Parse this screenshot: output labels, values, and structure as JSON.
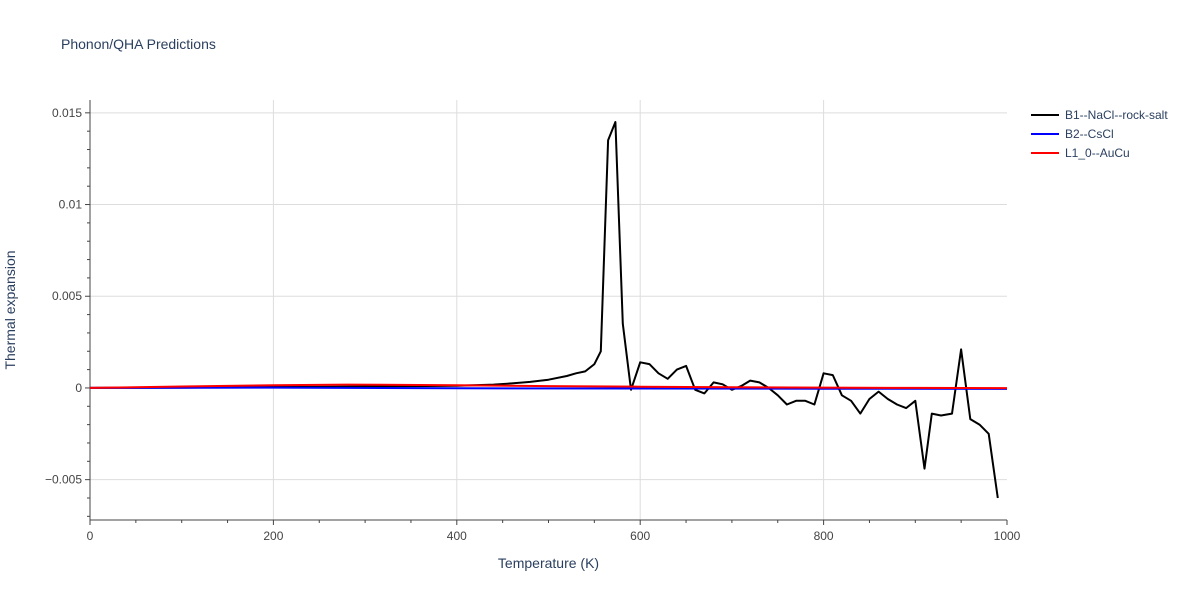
{
  "chart_data": {
    "type": "line",
    "title": "Phonon/QHA Predictions",
    "xlabel": "Temperature (K)",
    "ylabel": "Thermal expansion",
    "xlim": [
      0,
      1000
    ],
    "ylim": [
      -0.0072,
      0.0157
    ],
    "xticks": [
      0,
      200,
      400,
      600,
      800,
      1000
    ],
    "xtick_labels": [
      "0",
      "200",
      "400",
      "600",
      "800",
      "1000"
    ],
    "yticks": [
      -0.005,
      0,
      0.005,
      0.01,
      0.015
    ],
    "ytick_labels": [
      "−0.005",
      "0",
      "0.005",
      "0.01",
      "0.015"
    ],
    "grid": true,
    "legend_position": "top-right",
    "series": [
      {
        "name": "B1--NaCl--rock-salt",
        "color": "#000000",
        "points": [
          [
            0,
            0
          ],
          [
            100,
            2e-05
          ],
          [
            200,
            5e-05
          ],
          [
            300,
            8e-05
          ],
          [
            400,
            0.00012
          ],
          [
            440,
            0.00018
          ],
          [
            460,
            0.00025
          ],
          [
            480,
            0.00033
          ],
          [
            500,
            0.00045
          ],
          [
            520,
            0.00065
          ],
          [
            530,
            0.0008
          ],
          [
            540,
            0.0009
          ],
          [
            550,
            0.0013
          ],
          [
            557,
            0.002
          ],
          [
            565,
            0.0135
          ],
          [
            573,
            0.0145
          ],
          [
            581,
            0.0035
          ],
          [
            590,
            -0.0001
          ],
          [
            600,
            0.0014
          ],
          [
            610,
            0.0013
          ],
          [
            620,
            0.0008
          ],
          [
            630,
            0.0005
          ],
          [
            640,
            0.001
          ],
          [
            650,
            0.0012
          ],
          [
            660,
            -0.0001
          ],
          [
            670,
            -0.0003
          ],
          [
            680,
            0.0003
          ],
          [
            690,
            0.0002
          ],
          [
            700,
            -0.0001
          ],
          [
            710,
            0.0001
          ],
          [
            720,
            0.0004
          ],
          [
            730,
            0.0003
          ],
          [
            740,
            0.0
          ],
          [
            750,
            -0.0004
          ],
          [
            760,
            -0.0009
          ],
          [
            770,
            -0.0007
          ],
          [
            780,
            -0.0007
          ],
          [
            790,
            -0.0009
          ],
          [
            800,
            0.0008
          ],
          [
            810,
            0.0007
          ],
          [
            820,
            -0.0004
          ],
          [
            830,
            -0.0007
          ],
          [
            840,
            -0.0014
          ],
          [
            850,
            -0.0006
          ],
          [
            860,
            -0.0002
          ],
          [
            870,
            -0.0006
          ],
          [
            880,
            -0.0009
          ],
          [
            890,
            -0.0011
          ],
          [
            900,
            -0.0007
          ],
          [
            910,
            -0.0044
          ],
          [
            918,
            -0.0014
          ],
          [
            928,
            -0.0015
          ],
          [
            940,
            -0.0014
          ],
          [
            950,
            0.0021
          ],
          [
            960,
            -0.0017
          ],
          [
            970,
            -0.002
          ],
          [
            980,
            -0.0025
          ],
          [
            990,
            -0.006
          ]
        ]
      },
      {
        "name": "B2--CsCl",
        "color": "#0000ff",
        "points": [
          [
            0,
            0
          ],
          [
            200,
            2e-05
          ],
          [
            400,
            -2e-05
          ],
          [
            600,
            -3e-05
          ],
          [
            800,
            -4e-05
          ],
          [
            1000,
            -5e-05
          ]
        ]
      },
      {
        "name": "L1_0--AuCu",
        "color": "#ff0000",
        "points": [
          [
            0,
            0
          ],
          [
            100,
            8e-05
          ],
          [
            200,
            0.00015
          ],
          [
            280,
            0.00018
          ],
          [
            400,
            0.00015
          ],
          [
            500,
            0.0001
          ],
          [
            600,
            7e-05
          ],
          [
            700,
            4e-05
          ],
          [
            800,
            2e-05
          ],
          [
            900,
            0.0
          ],
          [
            1000,
            -1e-05
          ]
        ]
      }
    ]
  }
}
